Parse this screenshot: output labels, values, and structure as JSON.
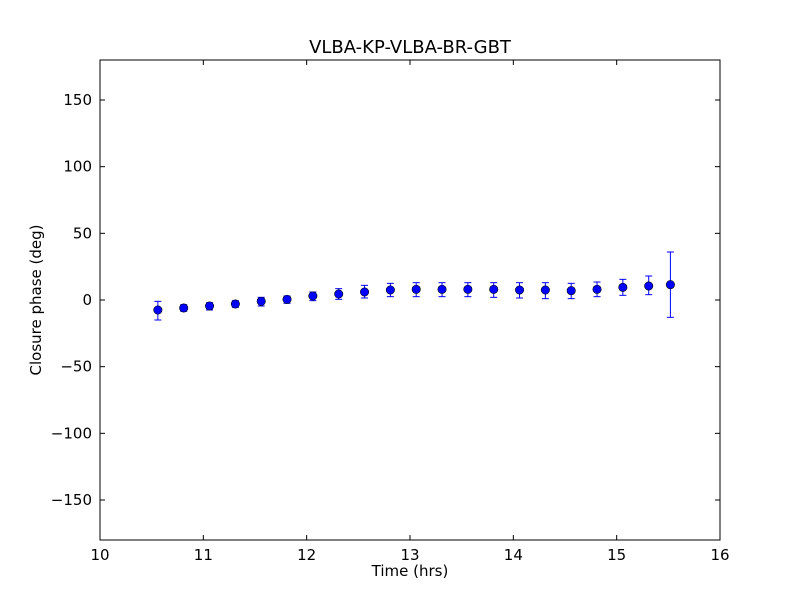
{
  "chart_data": {
    "type": "scatter",
    "title": "VLBA-KP-VLBA-BR-GBT",
    "xlabel": "Time (hrs)",
    "ylabel": "Closure phase (deg)",
    "xlim": [
      10,
      16
    ],
    "ylim": [
      -180,
      180
    ],
    "xticks": [
      "10",
      "11",
      "12",
      "13",
      "14",
      "15",
      "16"
    ],
    "yticks": [
      "−150",
      "−100",
      "−50",
      "0",
      "50",
      "100",
      "150"
    ],
    "xtick_values": [
      10,
      11,
      12,
      13,
      14,
      15,
      16
    ],
    "ytick_values": [
      -150,
      -100,
      -50,
      0,
      50,
      100,
      150
    ],
    "grid": false,
    "marker_color": "#0000ff",
    "series": [
      {
        "x": [
          10.56,
          10.81,
          11.06,
          11.31,
          11.56,
          11.81,
          12.06,
          12.31,
          12.56,
          12.81,
          13.06,
          13.31,
          13.56,
          13.81,
          14.06,
          14.31,
          14.56,
          14.81,
          15.06,
          15.31,
          15.52
        ],
        "y": [
          -7.5,
          -6,
          -4.5,
          -3,
          -1,
          0.5,
          3,
          4.5,
          6,
          7.5,
          8,
          8,
          8,
          8,
          7.5,
          7.5,
          7,
          8,
          9.5,
          10.5,
          11.5
        ],
        "yerr_low": [
          -15,
          -8.5,
          -7.5,
          -5.5,
          -4.5,
          -2.5,
          -0.5,
          0.5,
          1.5,
          2.5,
          2.5,
          2.5,
          2.5,
          2,
          1.5,
          1,
          1,
          2.5,
          3.5,
          4,
          -13
        ],
        "yerr_high": [
          -1,
          -3.5,
          -2,
          -0.5,
          2,
          3,
          6,
          8.5,
          11,
          12.5,
          13,
          13,
          13,
          13,
          13,
          13,
          12.5,
          13.5,
          15.5,
          18,
          36
        ]
      }
    ]
  }
}
